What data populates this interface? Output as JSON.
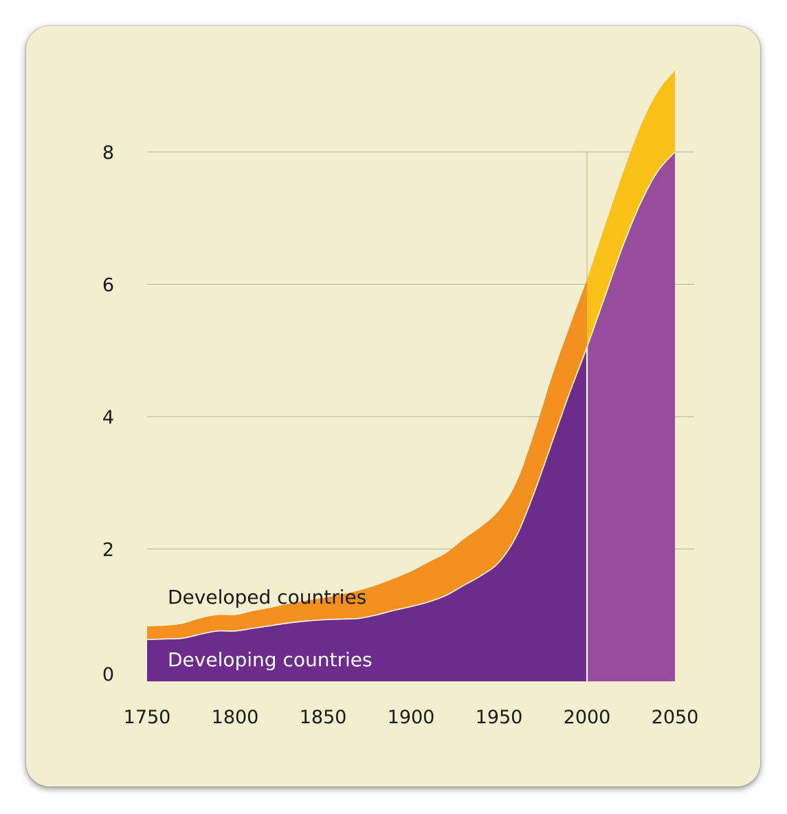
{
  "chart_data": {
    "type": "area",
    "title": "",
    "xlabel": "",
    "ylabel": "",
    "xlim": [
      1750,
      2050
    ],
    "ylim": [
      0,
      8
    ],
    "x_ticks": [
      "1750",
      "1800",
      "1850",
      "1900",
      "1950",
      "2000",
      "2050"
    ],
    "y_ticks": [
      "0",
      "2",
      "4",
      "6",
      "8"
    ],
    "grid": "horizontal",
    "projection_start": 2000,
    "x": [
      1750,
      1760,
      1770,
      1780,
      1790,
      1800,
      1810,
      1820,
      1830,
      1840,
      1850,
      1860,
      1870,
      1880,
      1890,
      1900,
      1910,
      1920,
      1930,
      1940,
      1950,
      1960,
      1970,
      1980,
      1990,
      2000,
      2010,
      2020,
      2030,
      2040,
      2050
    ],
    "series": [
      {
        "name": "Developing countries",
        "stack": "bottom",
        "values": [
          0.63,
          0.64,
          0.65,
          0.71,
          0.76,
          0.76,
          0.8,
          0.84,
          0.88,
          0.91,
          0.93,
          0.94,
          0.95,
          1.0,
          1.07,
          1.13,
          1.2,
          1.3,
          1.45,
          1.6,
          1.8,
          2.2,
          2.85,
          3.6,
          4.35,
          5.05,
          5.8,
          6.55,
          7.2,
          7.7,
          8.0
        ]
      },
      {
        "name": "Developed countries",
        "stack": "top",
        "values": [
          0.2,
          0.2,
          0.22,
          0.24,
          0.24,
          0.24,
          0.26,
          0.27,
          0.29,
          0.31,
          0.33,
          0.37,
          0.42,
          0.45,
          0.48,
          0.53,
          0.6,
          0.64,
          0.7,
          0.74,
          0.78,
          0.81,
          0.9,
          1.0,
          1.0,
          1.02,
          1.07,
          1.1,
          1.16,
          1.2,
          1.23
        ]
      }
    ],
    "colors": {
      "developing_historical": "#6d2b8c",
      "developing_projection": "#984c9c",
      "developed_historical": "#f39020",
      "developed_projection": "#fcc118",
      "grid": "#b5b29a",
      "divider": "#ffffff",
      "developed_label": "#1a1a1a",
      "developing_label": "#ffffff"
    }
  }
}
